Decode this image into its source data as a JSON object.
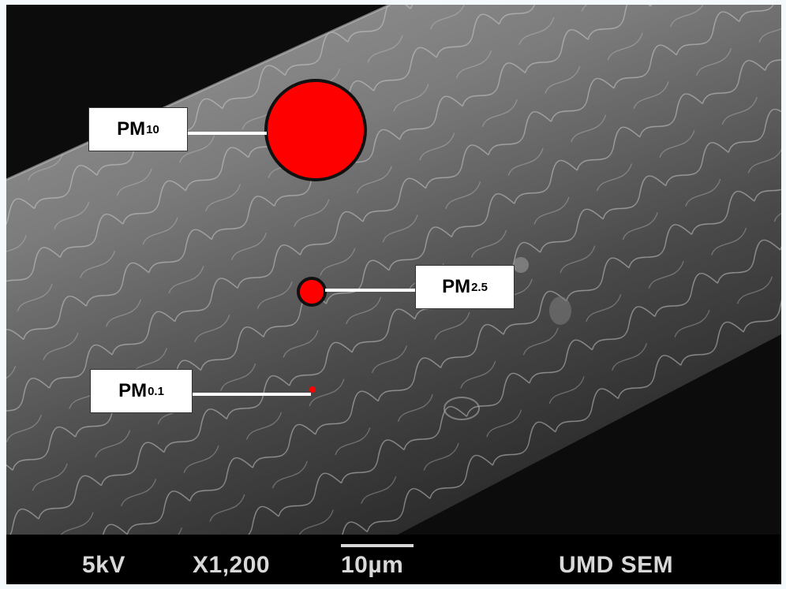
{
  "labels": {
    "pm10": {
      "base": "PM",
      "sub": "10"
    },
    "pm25": {
      "base": "PM",
      "sub": "2.5"
    },
    "pm01": {
      "base": "PM",
      "sub": "0.1"
    }
  },
  "info_bar": {
    "voltage": "5kV",
    "magnification": "X1,200",
    "scale": "10µm",
    "facility": "UMD SEM"
  },
  "colors": {
    "particle": "#ff0000",
    "label_bg": "#ffffff"
  }
}
